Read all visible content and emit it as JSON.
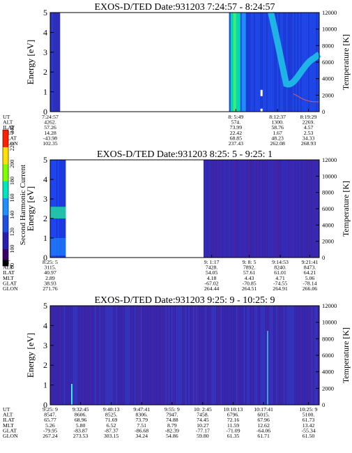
{
  "colorbar": {
    "label": "Second Harmonic Current",
    "ticks": [
      "80",
      "100",
      "120",
      "140",
      "160",
      "180",
      "200",
      "220",
      "240"
    ],
    "colors": [
      "#000000",
      "#3b0066",
      "#2a1fb0",
      "#1f4fe0",
      "#1e90ff",
      "#00e5c0",
      "#7fff00",
      "#ffe000",
      "#ff2000"
    ]
  },
  "chart_data": [
    {
      "type": "heatmap",
      "title": "EXOS-D/TED   Date:931203  7:24:57 - 8:24:57",
      "ylabel": "Energy [eV]",
      "ylabel_right": "Temperature [K]",
      "ylim": [
        0,
        5
      ],
      "ylim_right": [
        0,
        12000
      ],
      "yticks": [
        "0",
        "1",
        "2",
        "3",
        "4",
        "5"
      ],
      "yticks_right": [
        "0",
        "2000",
        "4000",
        "6000",
        "8000",
        "10000",
        "12000"
      ],
      "data_segments": [
        [
          0.0,
          0.037
        ],
        [
          0.665,
          1.0
        ]
      ],
      "orbit_rows": [
        "UT",
        "ALT",
        "ILAT",
        "MLT",
        "GLAT",
        "GLON"
      ],
      "orbit_columns": [
        {
          "frac": 0.0,
          "values": [
            "7:24:57",
            "4262.",
            "57.26",
            "14.28",
            "-43.98",
            "102.35"
          ]
        },
        {
          "frac": 0.69,
          "values": [
            "8: 5:49",
            "574.",
            "73.99",
            "22.42",
            "68.85",
            "237.43"
          ]
        },
        {
          "frac": 0.845,
          "values": [
            "8:12:37",
            "1300.",
            "58.76",
            "1.67",
            "48.23",
            "262.08"
          ]
        },
        {
          "frac": 0.96,
          "values": [
            "8:19:29",
            "2269.",
            "4.57",
            "2.53",
            "34.33",
            "268.93"
          ]
        }
      ]
    },
    {
      "type": "heatmap",
      "title": "EXOS-D/TED   Date:931203  8:25: 5 - 9:25: 1",
      "ylabel": "Energy [eV]",
      "ylabel_right": "Temperature [K]",
      "ylim": [
        0,
        5
      ],
      "ylim_right": [
        0,
        12000
      ],
      "yticks": [
        "0",
        "1",
        "2",
        "3",
        "4",
        "5"
      ],
      "yticks_right": [
        "0",
        "2000",
        "4000",
        "6000",
        "8000",
        "10000",
        "12000"
      ],
      "data_segments": [
        [
          0.0,
          0.058
        ],
        [
          0.57,
          1.0
        ]
      ],
      "orbit_rows": [
        "UT",
        "ALT",
        "ILAT",
        "MLT",
        "GLAT",
        "GLON"
      ],
      "orbit_columns": [
        {
          "frac": 0.0,
          "values": [
            "8:25: 5",
            "3115.",
            "40.97",
            "2.89",
            "38.93",
            "271.76"
          ]
        },
        {
          "frac": 0.6,
          "values": [
            "9: 1:17",
            "7428.",
            "54.05",
            "4.18",
            "-67.02",
            "264.44"
          ]
        },
        {
          "frac": 0.74,
          "values": [
            "9: 8: 5",
            "7892.",
            "57.61",
            "4.43",
            "-70.85",
            "264.51"
          ]
        },
        {
          "frac": 0.855,
          "values": [
            "9:14:53",
            "8240.",
            "61.01",
            "4.71",
            "-74.55",
            "264.91"
          ]
        },
        {
          "frac": 0.965,
          "values": [
            "9:21:41",
            "8473.",
            "64.21",
            "5.06",
            "-78.14",
            "266.06"
          ]
        }
      ]
    },
    {
      "type": "heatmap",
      "title": "EXOS-D/TED   Date:931203  9:25: 9 - 10:25: 9",
      "ylabel": "Energy [eV]",
      "ylabel_right": "Temperature [K]",
      "ylim": [
        0,
        5
      ],
      "ylim_right": [
        0,
        12000
      ],
      "yticks": [
        "0",
        "1",
        "2",
        "3",
        "4",
        "5"
      ],
      "yticks_right": [
        "0",
        "2000",
        "4000",
        "6000",
        "8000",
        "10000",
        "12000"
      ],
      "data_segments": [
        [
          0.0,
          1.0
        ]
      ],
      "orbit_rows": [
        "UT",
        "ALT",
        "ILAT",
        "MLT",
        "GLAT",
        "GLON"
      ],
      "orbit_columns": [
        {
          "frac": 0.0,
          "values": [
            "9:25: 9",
            "8547.",
            "65.77",
            "5.26",
            "-79.95",
            "267.24"
          ]
        },
        {
          "frac": 0.113,
          "values": [
            "9:32:45",
            "8606.",
            "68.96",
            "5.80",
            "-83.87",
            "273.53"
          ]
        },
        {
          "frac": 0.227,
          "values": [
            "9:40:13",
            "8525.",
            "71.69",
            "6.52",
            "-87.37",
            "303.15"
          ]
        },
        {
          "frac": 0.34,
          "values": [
            "9:47:41",
            "8306.",
            "73.79",
            "7.51",
            "-86.68",
            "34.24"
          ]
        },
        {
          "frac": 0.453,
          "values": [
            "9:55: 9",
            "7947.",
            "74.88",
            "8.79",
            "-82.39",
            "54.86"
          ]
        },
        {
          "frac": 0.567,
          "values": [
            "10: 2:45",
            "7458.",
            "74.45",
            "10.27",
            "-77.17",
            "59.80"
          ]
        },
        {
          "frac": 0.68,
          "values": [
            "10:10:13",
            "6796.",
            "72.16",
            "11.59",
            "-71.09",
            "61.35"
          ]
        },
        {
          "frac": 0.793,
          "values": [
            "10:17:41",
            "6015.",
            "67.96",
            "12.62",
            "-64.06",
            "61.71"
          ]
        },
        {
          "frac": 0.96,
          "values": [
            "10:25: 9",
            "5100.",
            "61.73",
            "13.42",
            "-55.34",
            "61.50"
          ]
        }
      ]
    }
  ]
}
